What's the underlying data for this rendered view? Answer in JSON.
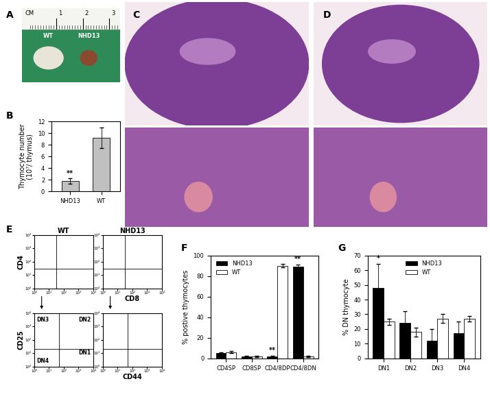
{
  "panels": {
    "A": {
      "label": "A",
      "ruler": {
        "unit": "CM",
        "ticks": [
          1,
          2,
          3
        ]
      },
      "samples": [
        "WT",
        "NHD13"
      ]
    },
    "C": {
      "label": "C"
    },
    "D": {
      "label": "D"
    },
    "E": {
      "label": "E"
    }
  },
  "chart_data": [
    {
      "panel": "B",
      "type": "bar",
      "categories": [
        "NHD13",
        "WT"
      ],
      "values": [
        1.8,
        9.2
      ],
      "errors": [
        0.5,
        1.8
      ],
      "color": "#c0c0c0",
      "ylabel": "Thymocyte number\n(10⁷/ thymus)",
      "ylim": [
        0,
        12
      ],
      "yticks": [
        0,
        2,
        4,
        6,
        8,
        10,
        12
      ],
      "annotations": [
        {
          "category": "NHD13",
          "text": "**"
        }
      ]
    },
    {
      "panel": "E",
      "type": "flow",
      "title": "WT",
      "ylabel": "CD4",
      "log": true,
      "xlim": [
        1,
        10000
      ],
      "ylim": [
        1,
        10000
      ],
      "xticks": [
        {
          "value": 1,
          "label": "10⁰"
        },
        {
          "value": 10,
          "label": "10¹"
        },
        {
          "value": 100,
          "label": "10²"
        },
        {
          "value": 1000,
          "label": "10³"
        },
        {
          "value": 10000,
          "label": "10⁴"
        }
      ],
      "yticks": [
        {
          "value": 1,
          "label": "10⁰"
        },
        {
          "value": 10,
          "label": "10¹"
        },
        {
          "value": 100,
          "label": "10²"
        },
        {
          "value": 1000,
          "label": "10³"
        },
        {
          "value": 10000,
          "label": "10⁴"
        }
      ],
      "gates": {
        "x": 30,
        "y": 30
      }
    },
    {
      "panel": "E",
      "type": "flow",
      "title": "NHD13",
      "xlabel": "CD8",
      "log": true,
      "xlim": [
        1,
        10000
      ],
      "ylim": [
        1,
        10000
      ],
      "xticks": [
        {
          "value": 1,
          "label": "10⁰"
        },
        {
          "value": 10,
          "label": "10¹"
        },
        {
          "value": 100,
          "label": "10²"
        },
        {
          "value": 1000,
          "label": "10³"
        },
        {
          "value": 10000,
          "label": "10⁴"
        }
      ],
      "yticks": [
        {
          "value": 1,
          "label": "10⁰"
        },
        {
          "value": 10,
          "label": "10¹"
        },
        {
          "value": 100,
          "label": "10²"
        },
        {
          "value": 1000,
          "label": "10³"
        },
        {
          "value": 10000,
          "label": "10⁴"
        }
      ],
      "gates": {
        "x": 30,
        "y": 30
      }
    },
    {
      "panel": "E",
      "type": "flow",
      "ylabel": "CD25",
      "log": true,
      "xlim": [
        1,
        10000
      ],
      "ylim": [
        1,
        10000
      ],
      "xticks": [
        {
          "value": 1,
          "label": "10⁰"
        },
        {
          "value": 10,
          "label": "10¹"
        },
        {
          "value": 100,
          "label": "10²"
        },
        {
          "value": 1000,
          "label": "10³"
        },
        {
          "value": 10000,
          "label": "10⁴"
        }
      ],
      "yticks": [
        {
          "value": 1,
          "label": "10⁰"
        },
        {
          "value": 10,
          "label": "10¹"
        },
        {
          "value": 100,
          "label": "10²"
        },
        {
          "value": 1000,
          "label": "10³"
        },
        {
          "value": 10000,
          "label": "10⁴"
        }
      ],
      "gates": {
        "x": 50,
        "y": 20
      },
      "quadrant_labels": {
        "upper left": "DN3",
        "upper right": "DN2",
        "lower right": "DN1",
        "lower left": "DN4"
      }
    },
    {
      "panel": "E",
      "type": "flow",
      "xlabel": "CD44",
      "log": true,
      "xlim": [
        1,
        10000
      ],
      "ylim": [
        1,
        10000
      ],
      "xticks": [
        {
          "value": 1,
          "label": "10⁰"
        },
        {
          "value": 10,
          "label": "10¹"
        },
        {
          "value": 100,
          "label": "10²"
        },
        {
          "value": 1000,
          "label": "10³"
        },
        {
          "value": 10000,
          "label": "10⁴"
        }
      ],
      "yticks": [
        {
          "value": 1,
          "label": "10⁰"
        },
        {
          "value": 10,
          "label": "10¹"
        },
        {
          "value": 100,
          "label": "10²"
        },
        {
          "value": 1000,
          "label": "10³"
        },
        {
          "value": 10000,
          "label": "10⁴"
        }
      ],
      "gates": {
        "x": 50,
        "y": 20
      }
    },
    {
      "panel": "F",
      "type": "bar",
      "categories": [
        "CD4SP",
        "CD8SP",
        "CD4/8DP",
        "CD4/8DN"
      ],
      "series": [
        {
          "name": "NHD13",
          "color": "#000000",
          "values": [
            5,
            2,
            2,
            89
          ],
          "errors": [
            1,
            0.5,
            0.5,
            2
          ]
        },
        {
          "name": "WT",
          "color": "#ffffff",
          "values": [
            6,
            2,
            90,
            2
          ],
          "errors": [
            1,
            0.5,
            1.5,
            0.5
          ]
        }
      ],
      "ylabel": "% postive thymocytes",
      "ylim": [
        0,
        100
      ],
      "yticks": [
        0,
        20,
        40,
        60,
        80,
        100
      ],
      "legend": "upper left",
      "annotations": [
        {
          "category": "CD4/8DP",
          "series": "NHD13",
          "text": "**"
        },
        {
          "category": "CD4/8DN",
          "series": "NHD13",
          "text": "**"
        }
      ]
    },
    {
      "panel": "G",
      "type": "bar",
      "categories": [
        "DN1",
        "DN2",
        "DN3",
        "DN4"
      ],
      "series": [
        {
          "name": "NHD13",
          "color": "#000000",
          "values": [
            48,
            24,
            12,
            17
          ],
          "errors": [
            16,
            8,
            8,
            8
          ]
        },
        {
          "name": "WT",
          "color": "#ffffff",
          "values": [
            25,
            18,
            27,
            27
          ],
          "errors": [
            2,
            3,
            3,
            2
          ]
        }
      ],
      "ylabel": "% DN thymocyte",
      "ylim": [
        0,
        70
      ],
      "yticks": [
        0,
        10,
        20,
        30,
        40,
        50,
        60,
        70
      ],
      "legend": "upper center",
      "annotations": [
        {
          "category": "DN1",
          "series": "NHD13",
          "text": "*"
        }
      ]
    }
  ]
}
